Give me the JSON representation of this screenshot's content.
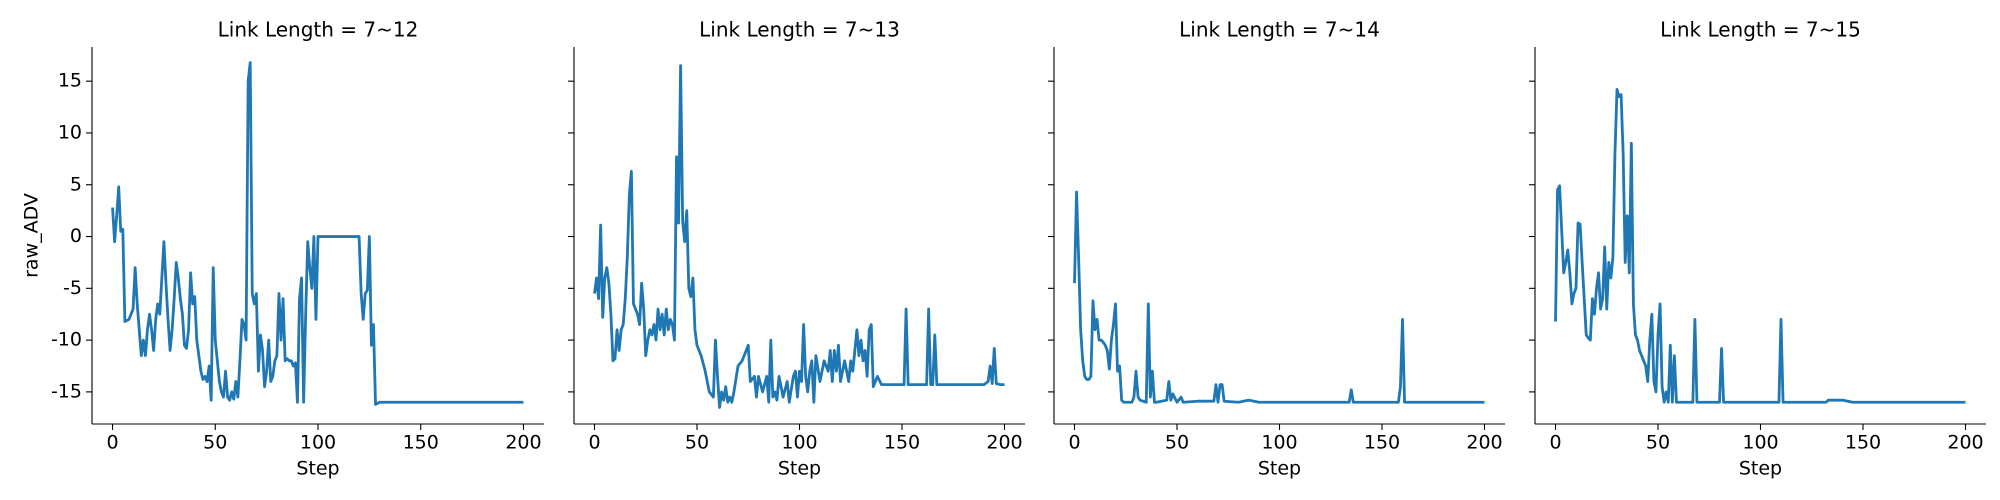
{
  "chart_data": [
    {
      "type": "line",
      "title": "Link Length = 7~12",
      "x_label": "Step",
      "y_label": "raw_ADV",
      "color": "#1f77b4",
      "xlim": [
        -10,
        210
      ],
      "ylim": [
        -18.1,
        18.3
      ],
      "xticks": [
        0,
        50,
        100,
        150,
        200
      ],
      "yticks": [
        -15,
        -10,
        -5,
        0,
        5,
        10,
        15
      ],
      "x": [
        0,
        1,
        2,
        3,
        4,
        5,
        6,
        8,
        10,
        11,
        12,
        13,
        14,
        15,
        16,
        17,
        18,
        19,
        20,
        21,
        22,
        23,
        24,
        25,
        26,
        27,
        28,
        29,
        30,
        31,
        32,
        33,
        34,
        35,
        36,
        37,
        38,
        39,
        40,
        41,
        42,
        43,
        44,
        45,
        46,
        47,
        48,
        49,
        50,
        52,
        53,
        54,
        55,
        56,
        57,
        58,
        59,
        60,
        61,
        62,
        63,
        64,
        65,
        66,
        67,
        68,
        69,
        70,
        71,
        72,
        73,
        74,
        75,
        76,
        77,
        78,
        79,
        80,
        81,
        82,
        83,
        84,
        85,
        86,
        87,
        88,
        89,
        90,
        91,
        92,
        93,
        94,
        95,
        96,
        97,
        98,
        99,
        100,
        105,
        110,
        115,
        120,
        121,
        122,
        123,
        124,
        125,
        126,
        127,
        128,
        130,
        135,
        140,
        150,
        160,
        170,
        180,
        190,
        200
      ],
      "values": [
        2.8,
        -0.5,
        2,
        4.8,
        0.5,
        0.7,
        -8.2,
        -8,
        -7,
        -3,
        -6.5,
        -9,
        -11.5,
        -10,
        -11.5,
        -9,
        -7.5,
        -9,
        -11,
        -8,
        -6.5,
        -7.5,
        -4,
        -0.5,
        -4.5,
        -8,
        -11,
        -9,
        -6,
        -2.5,
        -4,
        -6,
        -7.5,
        -10.5,
        -10.8,
        -9,
        -3.5,
        -6.5,
        -5.8,
        -10,
        -11.5,
        -13,
        -13.8,
        -13.5,
        -14,
        -12.5,
        -15.8,
        -3,
        -10,
        -14,
        -15,
        -15.5,
        -13,
        -15.5,
        -15.8,
        -15,
        -15.7,
        -14,
        -15.5,
        -12,
        -8,
        -8.5,
        -10,
        15,
        16.8,
        -5.5,
        -6.5,
        -5.5,
        -13,
        -9.5,
        -11,
        -14.5,
        -13,
        -10,
        -14,
        -13.5,
        -12,
        -11.5,
        -5.5,
        -10,
        -6,
        -12,
        -11.8,
        -12,
        -12,
        -12.5,
        -12.2,
        -16,
        -6,
        -4,
        -16,
        -7.5,
        -0.5,
        -3,
        -5,
        0,
        -8,
        0,
        0,
        0,
        0,
        0,
        -5.5,
        -8,
        -5.5,
        -5.2,
        0,
        -10.5,
        -8.5,
        -16.2,
        -16,
        -16,
        -16,
        -16,
        -16,
        -16,
        -16,
        -16,
        -16
      ]
    },
    {
      "type": "line",
      "title": "Link Length = 7~13",
      "x_label": "Step",
      "color": "#1f77b4",
      "xlim": [
        -10,
        210
      ],
      "ylim": [
        -18.1,
        18.3
      ],
      "xticks": [
        0,
        50,
        100,
        150,
        200
      ],
      "yticks": [
        -15,
        -10,
        -5,
        0,
        5,
        10,
        15
      ],
      "x": [
        0,
        1,
        2,
        3,
        4,
        5,
        6,
        7,
        8,
        9,
        10,
        11,
        12,
        13,
        14,
        15,
        16,
        17,
        18,
        19,
        20,
        21,
        22,
        23,
        24,
        25,
        26,
        27,
        28,
        29,
        30,
        31,
        32,
        33,
        34,
        35,
        36,
        37,
        38,
        39,
        40,
        41,
        42,
        43,
        44,
        45,
        46,
        47,
        48,
        49,
        50,
        52,
        54,
        56,
        58,
        59,
        60,
        61,
        62,
        63,
        64,
        65,
        66,
        67,
        68,
        70,
        72,
        74,
        75,
        76,
        78,
        79,
        80,
        82,
        84,
        85,
        86,
        87,
        88,
        89,
        90,
        92,
        94,
        95,
        97,
        98,
        99,
        100,
        101,
        102,
        103,
        104,
        105,
        106,
        107,
        108,
        110,
        112,
        114,
        115,
        116,
        117,
        118,
        119,
        120,
        122,
        124,
        125,
        126,
        128,
        129,
        130,
        131,
        132,
        133,
        134,
        135,
        136,
        137,
        138,
        140,
        145,
        150,
        151,
        152,
        153,
        160,
        162,
        163,
        164,
        165,
        166,
        167,
        175,
        185,
        190,
        192,
        193,
        194,
        195,
        196,
        198,
        200
      ],
      "values": [
        -5.5,
        -4,
        -6,
        1.1,
        -7.8,
        -4,
        -3,
        -4.5,
        -7.5,
        -12,
        -11.8,
        -9,
        -11,
        -9,
        -8.5,
        -6,
        -2,
        4,
        6.3,
        -6.5,
        -7,
        -7.5,
        -8.5,
        -4.5,
        -7,
        -11.5,
        -10,
        -9,
        -9.5,
        -8.5,
        -10,
        -7,
        -9,
        -7.5,
        -9.5,
        -7,
        -9,
        -8,
        -8.5,
        -10,
        7.7,
        1.3,
        16.5,
        1.5,
        -0.5,
        2.5,
        -5,
        -5.8,
        -4,
        -9,
        -10.5,
        -11.5,
        -13,
        -15,
        -15.5,
        -10,
        -13.5,
        -16.5,
        -15,
        -15.8,
        -14.5,
        -16,
        -15.5,
        -16,
        -15,
        -12.5,
        -12,
        -11,
        -10.5,
        -14,
        -13.5,
        -15.5,
        -13.5,
        -15,
        -13.5,
        -16,
        -10,
        -15.5,
        -15,
        -15.8,
        -13.5,
        -15.5,
        -14,
        -16,
        -13.5,
        -13,
        -15.5,
        -13,
        -14,
        -8.5,
        -13.5,
        -15,
        -13,
        -12,
        -16,
        -11.5,
        -14,
        -12,
        -13,
        -11,
        -14,
        -11,
        -13,
        -10.5,
        -14,
        -12,
        -14,
        -12,
        -13,
        -9,
        -11.5,
        -10,
        -12,
        -11,
        -13.5,
        -9,
        -8.5,
        -14.5,
        -14,
        -13.5,
        -14.3,
        -14.3,
        -14.3,
        -14.3,
        -7,
        -14.3,
        -14.3,
        -14.3,
        -7,
        -14.3,
        -14.3,
        -9.5,
        -14.3,
        -14.3,
        -14.3,
        -14.3,
        -14,
        -12.5,
        -14.2,
        -10.8,
        -14.2,
        -14.3,
        -14.3
      ]
    },
    {
      "type": "line",
      "title": "Link Length = 7~14",
      "x_label": "Step",
      "color": "#1f77b4",
      "xlim": [
        -10,
        210
      ],
      "ylim": [
        -18.1,
        18.3
      ],
      "xticks": [
        0,
        50,
        100,
        150,
        200
      ],
      "yticks": [
        -15,
        -10,
        -5,
        0,
        5,
        10,
        15
      ],
      "x": [
        0,
        1,
        2,
        3,
        4,
        5,
        6,
        7,
        8,
        9,
        10,
        11,
        12,
        13,
        14,
        15,
        16,
        17,
        18,
        19,
        20,
        21,
        22,
        23,
        24,
        25,
        28,
        29,
        30,
        31,
        32,
        35,
        36,
        37,
        38,
        39,
        40,
        45,
        46,
        47,
        48,
        50,
        52,
        53,
        60,
        68,
        69,
        70,
        71,
        72,
        73,
        80,
        85,
        90,
        100,
        120,
        134,
        135,
        136,
        150,
        158,
        159,
        160,
        161,
        170,
        200
      ],
      "values": [
        -4.5,
        4.3,
        -2,
        -9,
        -12,
        -13.5,
        -13.8,
        -13.8,
        -13.5,
        -6.2,
        -9,
        -8,
        -10,
        -10,
        -10.2,
        -10.5,
        -11,
        -12.8,
        -10,
        -8.5,
        -6.5,
        -13,
        -12.5,
        -15.8,
        -16,
        -16,
        -16,
        -15.5,
        -13,
        -15.5,
        -15.8,
        -16,
        -6.5,
        -15.5,
        -13,
        -16,
        -16,
        -15.8,
        -14,
        -15.8,
        -15.2,
        -16,
        -15.5,
        -16,
        -15.9,
        -15.9,
        -14.3,
        -16,
        -14.3,
        -14.3,
        -15.9,
        -16,
        -15.8,
        -16,
        -16,
        -16,
        -16,
        -14.8,
        -16,
        -16,
        -16,
        -14.5,
        -8,
        -16,
        -16,
        -16
      ]
    },
    {
      "type": "line",
      "title": "Link Length = 7~15",
      "x_label": "Step",
      "color": "#1f77b4",
      "xlim": [
        -10,
        210
      ],
      "ylim": [
        -18.1,
        18.3
      ],
      "xticks": [
        0,
        50,
        100,
        150,
        200
      ],
      "yticks": [
        -15,
        -10,
        -5,
        0,
        5,
        10,
        15
      ],
      "x": [
        0,
        1,
        2,
        3,
        4,
        5,
        6,
        7,
        8,
        9,
        10,
        11,
        12,
        13,
        14,
        15,
        16,
        17,
        18,
        19,
        20,
        21,
        22,
        23,
        24,
        25,
        26,
        27,
        28,
        29,
        30,
        31,
        32,
        33,
        34,
        35,
        36,
        37,
        38,
        39,
        40,
        41,
        42,
        43,
        44,
        45,
        46,
        47,
        48,
        49,
        50,
        51,
        52,
        53,
        54,
        55,
        56,
        57,
        58,
        59,
        60,
        67,
        68,
        69,
        80,
        81,
        82,
        100,
        109,
        110,
        111,
        120,
        132,
        133,
        140,
        145,
        150,
        200
      ],
      "values": [
        -8.2,
        4.5,
        4.9,
        0.7,
        -3.5,
        -2.5,
        -1.3,
        -3.5,
        -6.5,
        -5.5,
        -5,
        1.3,
        1.2,
        -2.5,
        -6,
        -9.5,
        -9.8,
        -10,
        -6,
        -7.5,
        -5,
        -3.5,
        -7,
        -6,
        -1,
        -7,
        -2.5,
        -4,
        -2,
        8,
        14.2,
        13.5,
        13.7,
        8,
        -2.5,
        2,
        -3.5,
        9,
        -6.5,
        -9.5,
        -10,
        -11,
        -11.5,
        -12,
        -12.5,
        -14,
        -10,
        -7.5,
        -14,
        -15,
        -9.5,
        -6.5,
        -14.5,
        -16,
        -15,
        -16,
        -10.5,
        -16,
        -11.5,
        -16,
        -16,
        -16,
        -8,
        -16,
        -16,
        -10.8,
        -16,
        -16,
        -16,
        -8,
        -16,
        -16,
        -16,
        -15.8,
        -15.8,
        -16,
        -16,
        -16
      ]
    }
  ]
}
